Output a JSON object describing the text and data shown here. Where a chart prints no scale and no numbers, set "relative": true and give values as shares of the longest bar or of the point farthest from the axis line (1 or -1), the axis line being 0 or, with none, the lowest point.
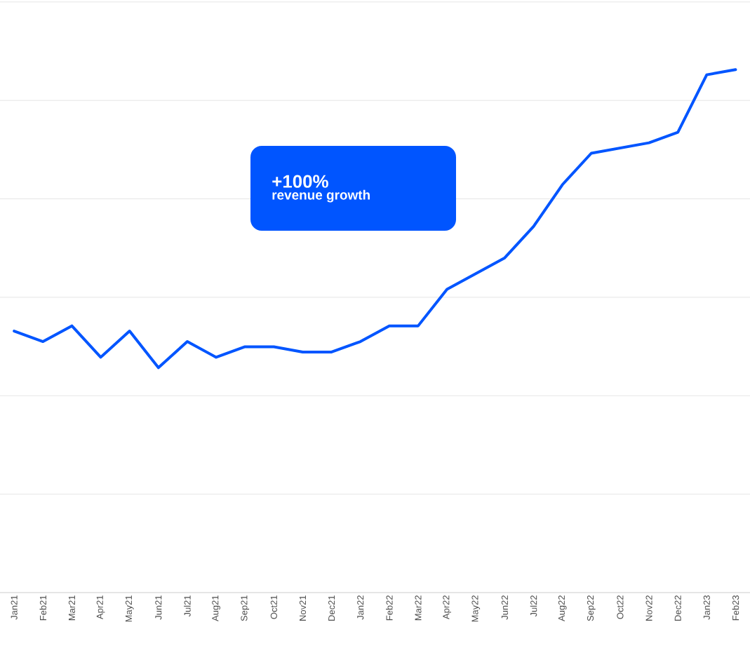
{
  "chart_data": {
    "type": "line",
    "relative": true,
    "grid": "y",
    "categories": [
      "Jan21",
      "Feb21",
      "Mar21",
      "Apr21",
      "May21",
      "Jun21",
      "Jul21",
      "Aug21",
      "Sep21",
      "Oct21",
      "Nov21",
      "Dec21",
      "Jan22",
      "Feb22",
      "Mar22",
      "Apr22",
      "May22",
      "Jun22",
      "Jul22",
      "Aug22",
      "Sep22",
      "Oct22",
      "Nov22",
      "Dec22",
      "Jan23",
      "Feb23"
    ],
    "values": [
      0.5,
      0.48,
      0.51,
      0.45,
      0.5,
      0.43,
      0.48,
      0.45,
      0.47,
      0.47,
      0.46,
      0.46,
      0.48,
      0.51,
      0.51,
      0.58,
      0.61,
      0.64,
      0.7,
      0.78,
      0.84,
      0.85,
      0.86,
      0.88,
      0.99,
      1.0
    ],
    "color": "#0055ff",
    "annotations": [
      "+100%",
      "revenue growth"
    ]
  }
}
